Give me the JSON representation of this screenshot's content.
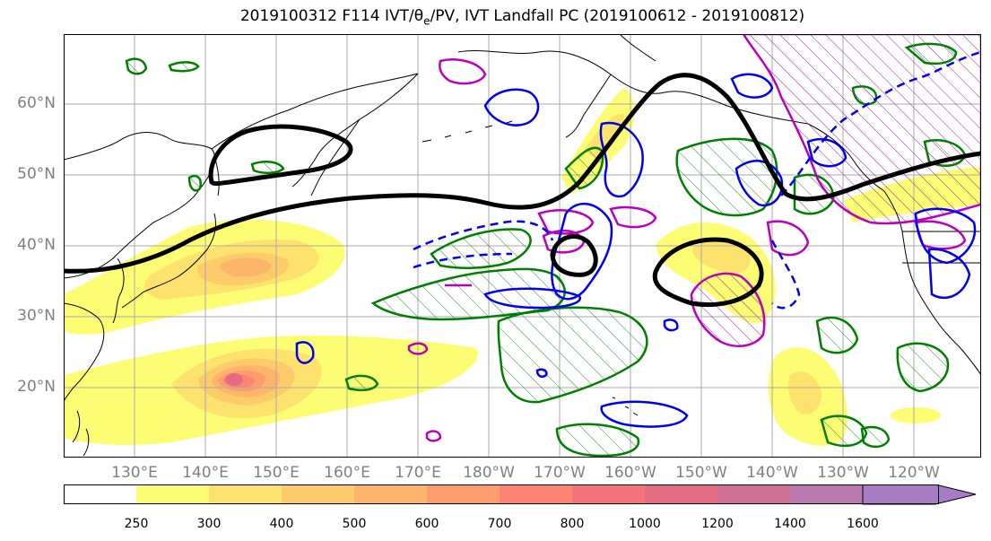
{
  "title": "2019100312 F114 IVT/θe/PV, IVT Landfall PC (2019100612 - 2019100812)",
  "lat_labels": [
    "60°N",
    "50°N",
    "40°N",
    "30°N",
    "20°N"
  ],
  "lon_labels": [
    "130°E",
    "140°E",
    "150°E",
    "160°E",
    "170°E",
    "180°W",
    "170°W",
    "160°W",
    "150°W",
    "140°W",
    "130°W",
    "120°W"
  ],
  "colorbar": {
    "levels": [
      "250",
      "300",
      "400",
      "500",
      "600",
      "700",
      "800",
      "1000",
      "1200",
      "1400",
      "1600"
    ],
    "colors": [
      "#fdfd74",
      "#fde26e",
      "#fdcb6a",
      "#fdb56b",
      "#fd9d6c",
      "#fd8373",
      "#f6737a",
      "#e46b82",
      "#d06f94",
      "#ba79b0",
      "#a87cc5"
    ]
  },
  "contour_colors": {
    "theta_e": "#000000",
    "pv_solid": "#0000ee",
    "pv_dashed": "#0000ee",
    "pc_green": "#008000",
    "pc_magenta": "#bb00bb"
  }
}
